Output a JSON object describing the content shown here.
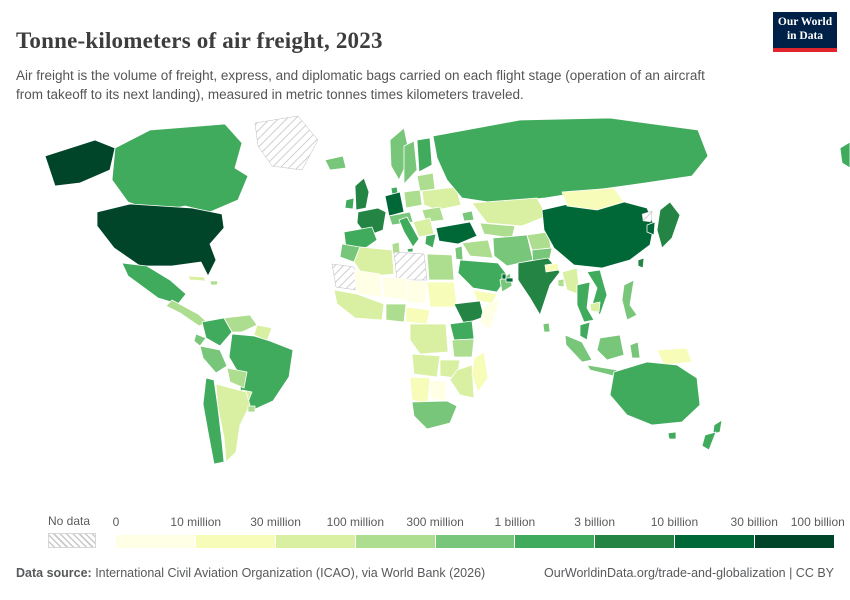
{
  "header": {
    "title": "Tonne-kilometers of air freight, 2023",
    "subtitle": "Air freight is the volume of freight, express, and diplomatic bags carried on each flight stage (operation of an aircraft from takeoff to its next landing), measured in metric tonnes times kilometers traveled.",
    "logo": {
      "line1": "Our World",
      "line2": "in Data"
    }
  },
  "legend": {
    "no_data_label": "No data",
    "tick_labels": [
      "0",
      "10 million",
      "30 million",
      "100 million",
      "300 million",
      "1 billion",
      "3 billion",
      "10 billion",
      "30 billion",
      "100 billion"
    ],
    "bin_colors": [
      "#ffffe5",
      "#f7fcb9",
      "#d9f0a3",
      "#addd8e",
      "#78c679",
      "#41ab5d",
      "#238443",
      "#006837",
      "#004529"
    ]
  },
  "footer": {
    "source_label": "Data source:",
    "source_text": " International Civil Aviation Organization (ICAO), via World Bank (2026)",
    "link_text": "OurWorldinData.org/trade-and-globalization | CC BY"
  },
  "chart_data": {
    "type": "choropleth",
    "title": "Tonne-kilometers of air freight, 2023",
    "year": 2023,
    "unit": "metric tonnes times kilometers traveled",
    "geography": "world",
    "legend_position": "bottom",
    "no_data_style": "diagonal-hatch",
    "bins": [
      {
        "range": "0–10 million",
        "color": "#ffffe5"
      },
      {
        "range": "10–30 million",
        "color": "#f7fcb9"
      },
      {
        "range": "30–100 million",
        "color": "#d9f0a3"
      },
      {
        "range": "100–300 million",
        "color": "#addd8e"
      },
      {
        "range": "300 million–1 billion",
        "color": "#78c679"
      },
      {
        "range": "1–3 billion",
        "color": "#41ab5d"
      },
      {
        "range": "3–10 billion",
        "color": "#238443"
      },
      {
        "range": "10–30 billion",
        "color": "#006837"
      },
      {
        "range": "30–100 billion",
        "color": "#004529"
      },
      {
        "range": "No data",
        "color": "pattern"
      }
    ],
    "regions": {
      "united-states": {
        "name": "United States",
        "bin": "30–100 billion",
        "color": "#004529"
      },
      "canada": {
        "name": "Canada",
        "bin": "1–3 billion",
        "color": "#41ab5d"
      },
      "greenland": {
        "name": "Greenland",
        "bin": "No data",
        "color": "pattern"
      },
      "mexico": {
        "name": "Mexico",
        "bin": "1–3 billion",
        "color": "#41ab5d"
      },
      "central-america": {
        "name": "Central America",
        "bin": "100–300 million",
        "color": "#addd8e"
      },
      "cuba": {
        "name": "Cuba",
        "bin": "30–100 million",
        "color": "#d9f0a3"
      },
      "hispaniola": {
        "name": "Hispaniola",
        "bin": "100–300 million",
        "color": "#addd8e"
      },
      "colombia": {
        "name": "Colombia",
        "bin": "1–3 billion",
        "color": "#41ab5d"
      },
      "venezuela": {
        "name": "Venezuela",
        "bin": "100–300 million",
        "color": "#addd8e"
      },
      "guyanas": {
        "name": "Guyanas",
        "bin": "30–100 million",
        "color": "#d9f0a3"
      },
      "brazil": {
        "name": "Brazil",
        "bin": "1–3 billion",
        "color": "#41ab5d"
      },
      "ecuador": {
        "name": "Ecuador",
        "bin": "300 million–1 billion",
        "color": "#78c679"
      },
      "peru": {
        "name": "Peru",
        "bin": "300 million–1 billion",
        "color": "#78c679"
      },
      "bolivia": {
        "name": "Bolivia",
        "bin": "100–300 million",
        "color": "#addd8e"
      },
      "paraguay": {
        "name": "Paraguay",
        "bin": "30–100 million",
        "color": "#d9f0a3"
      },
      "chile": {
        "name": "Chile",
        "bin": "1–3 billion",
        "color": "#41ab5d"
      },
      "argentina": {
        "name": "Argentina",
        "bin": "30–100 million",
        "color": "#d9f0a3"
      },
      "uruguay": {
        "name": "Uruguay",
        "bin": "100–300 million",
        "color": "#addd8e"
      },
      "iceland": {
        "name": "Iceland",
        "bin": "300 million–1 billion",
        "color": "#78c679"
      },
      "united-kingdom": {
        "name": "United Kingdom",
        "bin": "3–10 billion",
        "color": "#238443"
      },
      "ireland": {
        "name": "Ireland",
        "bin": "1–3 billion",
        "color": "#41ab5d"
      },
      "norway": {
        "name": "Norway",
        "bin": "300 million–1 billion",
        "color": "#78c679"
      },
      "sweden": {
        "name": "Sweden",
        "bin": "300 million–1 billion",
        "color": "#78c679"
      },
      "finland": {
        "name": "Finland",
        "bin": "1–3 billion",
        "color": "#41ab5d"
      },
      "denmark": {
        "name": "Denmark",
        "bin": "1–3 billion",
        "color": "#41ab5d"
      },
      "germany": {
        "name": "Germany",
        "bin": "10–30 billion",
        "color": "#006837"
      },
      "france": {
        "name": "France",
        "bin": "3–10 billion",
        "color": "#238443"
      },
      "spain": {
        "name": "Spain",
        "bin": "1–3 billion",
        "color": "#41ab5d"
      },
      "italy": {
        "name": "Italy",
        "bin": "1–3 billion",
        "color": "#41ab5d"
      },
      "central-europe": {
        "name": "Central Europe",
        "bin": "300 million–1 billion",
        "color": "#78c679"
      },
      "poland": {
        "name": "Poland",
        "bin": "100–300 million",
        "color": "#addd8e"
      },
      "belarus-baltics": {
        "name": "Belarus and Baltics",
        "bin": "100–300 million",
        "color": "#addd8e"
      },
      "ukraine": {
        "name": "Ukraine",
        "bin": "30–100 million",
        "color": "#d9f0a3"
      },
      "balkans": {
        "name": "Balkans",
        "bin": "30–100 million",
        "color": "#d9f0a3"
      },
      "romania-bulgaria": {
        "name": "Romania and Bulgaria",
        "bin": "100–300 million",
        "color": "#addd8e"
      },
      "greece": {
        "name": "Greece",
        "bin": "1–3 billion",
        "color": "#41ab5d"
      },
      "turkey": {
        "name": "Turkey",
        "bin": "10–30 billion",
        "color": "#006837"
      },
      "russia": {
        "name": "Russia",
        "bin": "1–3 billion",
        "color": "#41ab5d"
      },
      "kazakhstan": {
        "name": "Kazakhstan",
        "bin": "30–100 million",
        "color": "#d9f0a3"
      },
      "uzbekistan-turkmenistan": {
        "name": "Uzbekistan and Turkmenistan",
        "bin": "100–300 million",
        "color": "#addd8e"
      },
      "caucasus": {
        "name": "Caucasus",
        "bin": "300 million–1 billion",
        "color": "#78c679"
      },
      "iraq-syria": {
        "name": "Iraq and Syria",
        "bin": "100–300 million",
        "color": "#addd8e"
      },
      "iran": {
        "name": "Iran",
        "bin": "300 million–1 billion",
        "color": "#78c679"
      },
      "afghanistan": {
        "name": "Afghanistan",
        "bin": "100–300 million",
        "color": "#addd8e"
      },
      "pakistan": {
        "name": "Pakistan",
        "bin": "300 million–1 billion",
        "color": "#78c679"
      },
      "saudi-arabia": {
        "name": "Saudi Arabia",
        "bin": "1–3 billion",
        "color": "#41ab5d"
      },
      "yemen": {
        "name": "Yemen",
        "bin": "10–30 million",
        "color": "#f7fcb9"
      },
      "oman": {
        "name": "Oman",
        "bin": "300 million–1 billion",
        "color": "#78c679"
      },
      "qatar": {
        "name": "Qatar",
        "bin": "10–30 billion",
        "color": "#006837"
      },
      "uae": {
        "name": "United Arab Emirates",
        "bin": "10–30 billion",
        "color": "#006837"
      },
      "israel-jordan": {
        "name": "Israel and Jordan",
        "bin": "300 million–1 billion",
        "color": "#78c679"
      },
      "morocco": {
        "name": "Morocco",
        "bin": "300 million–1 billion",
        "color": "#78c679"
      },
      "algeria": {
        "name": "Algeria",
        "bin": "30–100 million",
        "color": "#d9f0a3"
      },
      "tunisia": {
        "name": "Tunisia",
        "bin": "100–300 million",
        "color": "#addd8e"
      },
      "libya": {
        "name": "Libya",
        "bin": "No data",
        "color": "pattern"
      },
      "egypt": {
        "name": "Egypt",
        "bin": "100–300 million",
        "color": "#addd8e"
      },
      "western-sahara-mauritania": {
        "name": "Western Sahara and Mauritania",
        "bin": "No data",
        "color": "pattern"
      },
      "mali": {
        "name": "Mali",
        "bin": "0–10 million",
        "color": "#ffffe5"
      },
      "niger": {
        "name": "Niger",
        "bin": "0–10 million",
        "color": "#ffffe5"
      },
      "chad": {
        "name": "Chad",
        "bin": "0–10 million",
        "color": "#ffffe5"
      },
      "sudan": {
        "name": "Sudan",
        "bin": "10–30 million",
        "color": "#f7fcb9"
      },
      "west-africa": {
        "name": "West Africa",
        "bin": "30–100 million",
        "color": "#d9f0a3"
      },
      "nigeria": {
        "name": "Nigeria",
        "bin": "100–300 million",
        "color": "#addd8e"
      },
      "cameroon-car": {
        "name": "Cameroon and Central Africa",
        "bin": "10–30 million",
        "color": "#f7fcb9"
      },
      "ethiopia": {
        "name": "Ethiopia",
        "bin": "3–10 billion",
        "color": "#238443"
      },
      "somalia": {
        "name": "Somalia",
        "bin": "0–10 million",
        "color": "#ffffe5"
      },
      "kenya": {
        "name": "Kenya",
        "bin": "1–3 billion",
        "color": "#41ab5d"
      },
      "tanzania": {
        "name": "Tanzania",
        "bin": "100–300 million",
        "color": "#addd8e"
      },
      "drc": {
        "name": "Democratic Republic of Congo",
        "bin": "30–100 million",
        "color": "#d9f0a3"
      },
      "angola": {
        "name": "Angola",
        "bin": "30–100 million",
        "color": "#d9f0a3"
      },
      "zambia": {
        "name": "Zambia",
        "bin": "30–100 million",
        "color": "#d9f0a3"
      },
      "mozambique-zimbabwe": {
        "name": "Mozambique and Zimbabwe",
        "bin": "30–100 million",
        "color": "#d9f0a3"
      },
      "namibia": {
        "name": "Namibia",
        "bin": "10–30 million",
        "color": "#f7fcb9"
      },
      "botswana": {
        "name": "Botswana",
        "bin": "0–10 million",
        "color": "#ffffe5"
      },
      "south-africa": {
        "name": "South Africa",
        "bin": "300 million–1 billion",
        "color": "#78c679"
      },
      "madagascar": {
        "name": "Madagascar",
        "bin": "10–30 million",
        "color": "#f7fcb9"
      },
      "india": {
        "name": "India",
        "bin": "3–10 billion",
        "color": "#238443"
      },
      "sri-lanka": {
        "name": "Sri Lanka",
        "bin": "300 million–1 billion",
        "color": "#78c679"
      },
      "bangladesh": {
        "name": "Bangladesh",
        "bin": "100–300 million",
        "color": "#addd8e"
      },
      "nepal": {
        "name": "Nepal",
        "bin": "10–30 million",
        "color": "#f7fcb9"
      },
      "china": {
        "name": "China",
        "bin": "10–30 billion",
        "color": "#006837"
      },
      "mongolia": {
        "name": "Mongolia",
        "bin": "10–30 million",
        "color": "#f7fcb9"
      },
      "myanmar": {
        "name": "Myanmar",
        "bin": "30–100 million",
        "color": "#d9f0a3"
      },
      "thailand": {
        "name": "Thailand",
        "bin": "1–3 billion",
        "color": "#41ab5d"
      },
      "vietnam-laos": {
        "name": "Vietnam and Laos",
        "bin": "1–3 billion",
        "color": "#41ab5d"
      },
      "cambodia": {
        "name": "Cambodia",
        "bin": "30–100 million",
        "color": "#d9f0a3"
      },
      "malaysia": {
        "name": "Malaysia",
        "bin": "1–3 billion",
        "color": "#41ab5d"
      },
      "japan": {
        "name": "Japan",
        "bin": "3–10 billion",
        "color": "#238443"
      },
      "south-korea": {
        "name": "South Korea",
        "bin": "10–30 billion",
        "color": "#006837"
      },
      "north-korea": {
        "name": "North Korea",
        "bin": "No data",
        "color": "pattern"
      },
      "taiwan": {
        "name": "Taiwan",
        "bin": "3–10 billion",
        "color": "#238443"
      },
      "philippines": {
        "name": "Philippines",
        "bin": "300 million–1 billion",
        "color": "#78c679"
      },
      "indonesia": {
        "name": "Indonesia",
        "bin": "300 million–1 billion",
        "color": "#78c679"
      },
      "new-guinea": {
        "name": "Papua New Guinea",
        "bin": "10–30 million",
        "color": "#f7fcb9"
      },
      "australia": {
        "name": "Australia",
        "bin": "1–3 billion",
        "color": "#41ab5d"
      },
      "new-zealand": {
        "name": "New Zealand",
        "bin": "1–3 billion",
        "color": "#41ab5d"
      }
    }
  }
}
